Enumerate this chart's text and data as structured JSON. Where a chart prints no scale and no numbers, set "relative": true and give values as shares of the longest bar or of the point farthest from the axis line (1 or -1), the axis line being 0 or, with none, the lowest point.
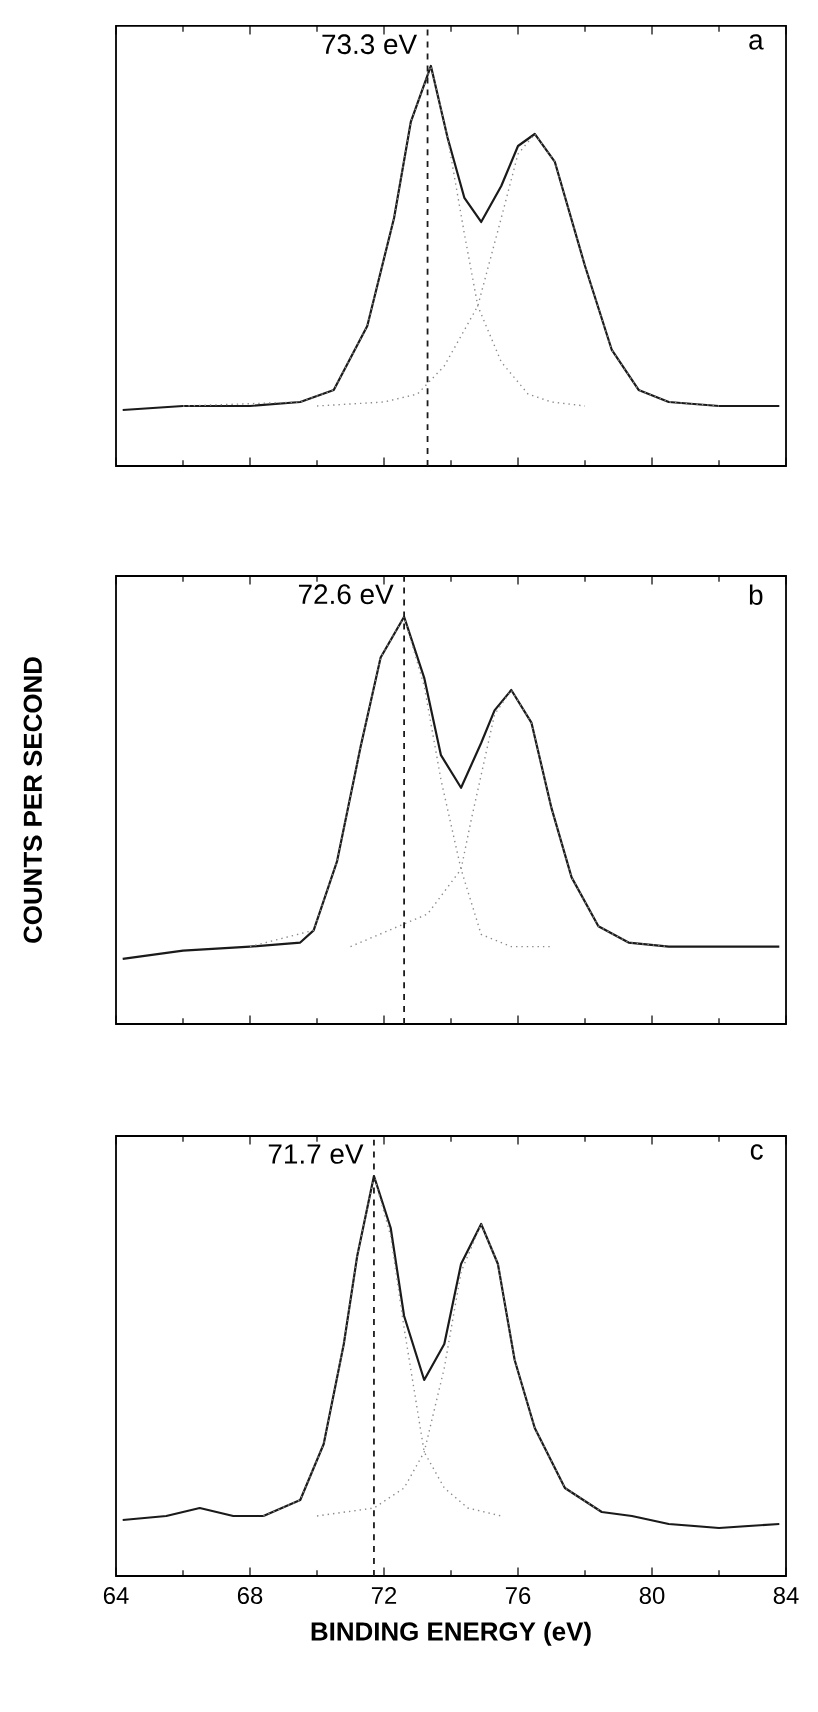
{
  "chart_data": [
    {
      "type": "line",
      "relative": true,
      "tick_labels": false,
      "xlim": [
        64,
        84
      ],
      "xticks": [
        64,
        68,
        72,
        76,
        80,
        84
      ],
      "series": [
        {
          "color": "#1a1a1a",
          "line_style": "solid",
          "x": [
            64.2,
            66,
            68,
            69.5,
            70.5,
            71.5,
            72.3,
            72.8,
            73.4,
            73.9,
            74.4,
            74.9,
            75.5,
            76.0,
            76.5,
            77.1,
            78.0,
            78.8,
            79.6,
            80.5,
            82,
            83.8
          ],
          "values": [
            0.14,
            0.15,
            0.15,
            0.16,
            0.19,
            0.35,
            0.62,
            0.86,
            1.0,
            0.82,
            0.67,
            0.61,
            0.7,
            0.8,
            0.83,
            0.76,
            0.5,
            0.29,
            0.19,
            0.16,
            0.15,
            0.15
          ]
        },
        {
          "color": "#8a8a8a",
          "line_style": "dotted",
          "x": [
            66,
            69.5,
            70.5,
            71.5,
            72.3,
            72.8,
            73.4,
            73.9,
            74.4,
            74.8,
            75.5,
            76.3,
            77,
            78
          ],
          "values": [
            0.15,
            0.16,
            0.19,
            0.35,
            0.62,
            0.86,
            1.0,
            0.82,
            0.58,
            0.4,
            0.26,
            0.18,
            0.16,
            0.15
          ]
        },
        {
          "color": "#8a8a8a",
          "line_style": "dotted",
          "x": [
            70,
            72,
            73,
            73.8,
            74.8,
            75.5,
            76.0,
            76.5,
            77.1,
            78.0,
            78.8,
            79.6,
            80.5,
            82
          ],
          "values": [
            0.15,
            0.16,
            0.18,
            0.25,
            0.4,
            0.62,
            0.78,
            0.83,
            0.76,
            0.5,
            0.29,
            0.19,
            0.16,
            0.15
          ]
        }
      ],
      "ref_lines": [
        {
          "axis": "x",
          "value": 73.3,
          "label": "73.3 eV",
          "color": "#1a1a1a",
          "line_style": "dashed"
        }
      ],
      "annotations": [
        "a"
      ]
    },
    {
      "type": "line",
      "relative": true,
      "tick_labels": false,
      "xlim": [
        64,
        84
      ],
      "xticks": [
        64,
        68,
        72,
        76,
        80,
        84
      ],
      "ylabel": "COUNTS PER SECOND",
      "series": [
        {
          "color": "#1a1a1a",
          "line_style": "solid",
          "x": [
            64.2,
            66,
            68,
            69.5,
            69.9,
            70.6,
            71.3,
            71.9,
            72.6,
            73.2,
            73.7,
            74.3,
            74.9,
            75.3,
            75.8,
            76.4,
            77.0,
            77.6,
            78.4,
            79.3,
            80.5,
            82,
            83.8
          ],
          "values": [
            0.16,
            0.18,
            0.19,
            0.2,
            0.23,
            0.4,
            0.68,
            0.9,
            1.0,
            0.85,
            0.66,
            0.58,
            0.69,
            0.77,
            0.82,
            0.74,
            0.53,
            0.36,
            0.24,
            0.2,
            0.19,
            0.19,
            0.19
          ]
        },
        {
          "color": "#8a8a8a",
          "line_style": "dotted",
          "x": [
            68,
            69.9,
            70.6,
            71.3,
            71.9,
            72.6,
            73.2,
            73.7,
            74.3,
            74.9,
            75.8,
            77
          ],
          "values": [
            0.19,
            0.23,
            0.4,
            0.68,
            0.9,
            1.0,
            0.83,
            0.6,
            0.38,
            0.22,
            0.19,
            0.19
          ]
        },
        {
          "color": "#8a8a8a",
          "line_style": "dotted",
          "x": [
            71,
            73.3,
            74.3,
            74.6,
            75.3,
            75.8,
            76.4,
            77.0,
            77.6,
            78.4,
            79.3,
            80.5
          ],
          "values": [
            0.19,
            0.27,
            0.38,
            0.5,
            0.76,
            0.82,
            0.74,
            0.53,
            0.36,
            0.24,
            0.2,
            0.19
          ]
        }
      ],
      "ref_lines": [
        {
          "axis": "x",
          "value": 72.6,
          "label": "72.6 eV",
          "color": "#1a1a1a",
          "line_style": "dashed"
        }
      ],
      "annotations": [
        "b"
      ]
    },
    {
      "type": "line",
      "relative": true,
      "tick_labels": "x",
      "xlim": [
        64,
        84
      ],
      "xticks": [
        64,
        68,
        72,
        76,
        80,
        84
      ],
      "xlabel": "BINDING ENERGY (eV)",
      "series": [
        {
          "color": "#1a1a1a",
          "line_style": "solid",
          "x": [
            64.2,
            65.5,
            66.5,
            67.5,
            68.4,
            69.5,
            70.2,
            70.8,
            71.2,
            71.7,
            72.2,
            72.6,
            73.2,
            73.8,
            74.3,
            74.9,
            75.4,
            75.9,
            76.5,
            77.4,
            78.5,
            79.4,
            80.5,
            82,
            83.8
          ],
          "values": [
            0.14,
            0.15,
            0.17,
            0.15,
            0.15,
            0.19,
            0.33,
            0.58,
            0.8,
            1.0,
            0.87,
            0.65,
            0.49,
            0.58,
            0.78,
            0.88,
            0.78,
            0.54,
            0.37,
            0.22,
            0.16,
            0.15,
            0.13,
            0.12,
            0.13
          ]
        },
        {
          "color": "#8a8a8a",
          "line_style": "dotted",
          "x": [
            68.4,
            69.5,
            70.2,
            70.8,
            71.2,
            71.7,
            72.2,
            72.6,
            73.2,
            73.8,
            74.5,
            75.5
          ],
          "values": [
            0.15,
            0.19,
            0.33,
            0.58,
            0.8,
            1.0,
            0.85,
            0.62,
            0.31,
            0.22,
            0.17,
            0.15
          ]
        },
        {
          "color": "#8a8a8a",
          "line_style": "dotted",
          "x": [
            70,
            71.7,
            72.6,
            73.2,
            73.8,
            74.3,
            74.9,
            75.4,
            75.9,
            76.5,
            77.4,
            78.5
          ],
          "values": [
            0.15,
            0.17,
            0.22,
            0.31,
            0.52,
            0.76,
            0.88,
            0.78,
            0.54,
            0.37,
            0.22,
            0.16
          ]
        }
      ],
      "ref_lines": [
        {
          "axis": "x",
          "value": 71.7,
          "label": "71.7 eV",
          "color": "#1a1a1a",
          "line_style": "dashed"
        }
      ],
      "annotations": [
        "c"
      ]
    }
  ]
}
